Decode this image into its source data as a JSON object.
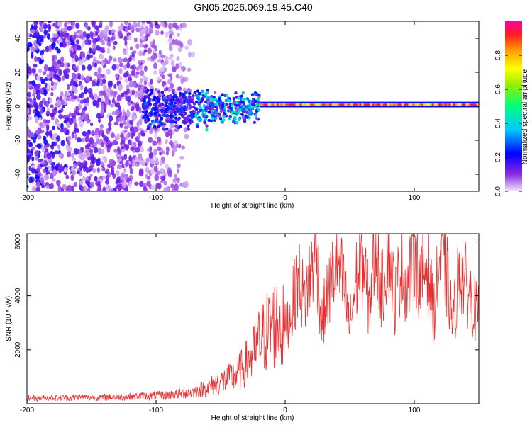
{
  "title": "GN05.2026.069.19.45.C40",
  "chart_data": [
    {
      "type": "heatmap",
      "name": "spectrogram",
      "xlabel": "Height of straight line (km)",
      "ylabel": "Frequency (Hz)",
      "xlim": [
        -200,
        150
      ],
      "ylim": [
        -50,
        50
      ],
      "xticks": [
        -200,
        -100,
        0,
        100
      ],
      "yticks": [
        -40,
        -20,
        0,
        20,
        40
      ],
      "colorbar": {
        "label": "Normalized spectral amplitude",
        "range": [
          0,
          1
        ],
        "ticks": [
          0.0,
          0.2,
          0.4,
          0.6,
          0.8
        ],
        "colors": [
          "#f2e6fa",
          "#8a2be2",
          "#0000ff",
          "#00c8ff",
          "#00ff80",
          "#90ee00",
          "#ffff00",
          "#ffa500",
          "#ff2020",
          "#ff00a0"
        ]
      },
      "features": [
        {
          "region": "noise",
          "x_range": [
            -200,
            -70
          ],
          "freq_range": [
            -50,
            50
          ],
          "amplitude": 0.1
        },
        {
          "region": "transition",
          "x_range": [
            -110,
            -20
          ],
          "freq_range": [
            -20,
            12
          ],
          "amplitude": 0.3
        },
        {
          "region": "tone",
          "x_range": [
            -20,
            150
          ],
          "freq_center": 1,
          "amplitude": 0.95
        }
      ]
    },
    {
      "type": "line",
      "name": "snr",
      "xlabel": "Height of straight line (km)",
      "ylabel": "SNR (10 * v/v)",
      "xlim": [
        -200,
        150
      ],
      "ylim": [
        0,
        6300
      ],
      "xticks": [
        -200,
        -100,
        0,
        100
      ],
      "yticks": [
        2000,
        4000,
        6000
      ],
      "series": [
        {
          "name": "SNR",
          "color": "#e83030",
          "x": [
            -200,
            -180,
            -160,
            -140,
            -120,
            -100,
            -90,
            -80,
            -70,
            -60,
            -55,
            -50,
            -45,
            -40,
            -35,
            -30,
            -25,
            -20,
            -15,
            -10,
            -5,
            0,
            5,
            10,
            15,
            20,
            24,
            28,
            32,
            36,
            40,
            45,
            50,
            55,
            60,
            65,
            70,
            75,
            80,
            85,
            90,
            95,
            100,
            105,
            110,
            115,
            120,
            125,
            130,
            135,
            140,
            145,
            150
          ],
          "y": [
            200,
            220,
            230,
            240,
            260,
            300,
            330,
            380,
            450,
            600,
            700,
            800,
            900,
            1000,
            1200,
            1500,
            1800,
            2300,
            2600,
            2900,
            3000,
            2700,
            3500,
            4700,
            3800,
            4900,
            6000,
            3000,
            3800,
            4600,
            5300,
            4400,
            2900,
            4600,
            5400,
            3600,
            5900,
            4100,
            6000,
            3800,
            5200,
            4300,
            5700,
            4400,
            5300,
            3300,
            5400,
            4800,
            2900,
            5100,
            4400,
            3800,
            3200
          ]
        }
      ]
    }
  ]
}
